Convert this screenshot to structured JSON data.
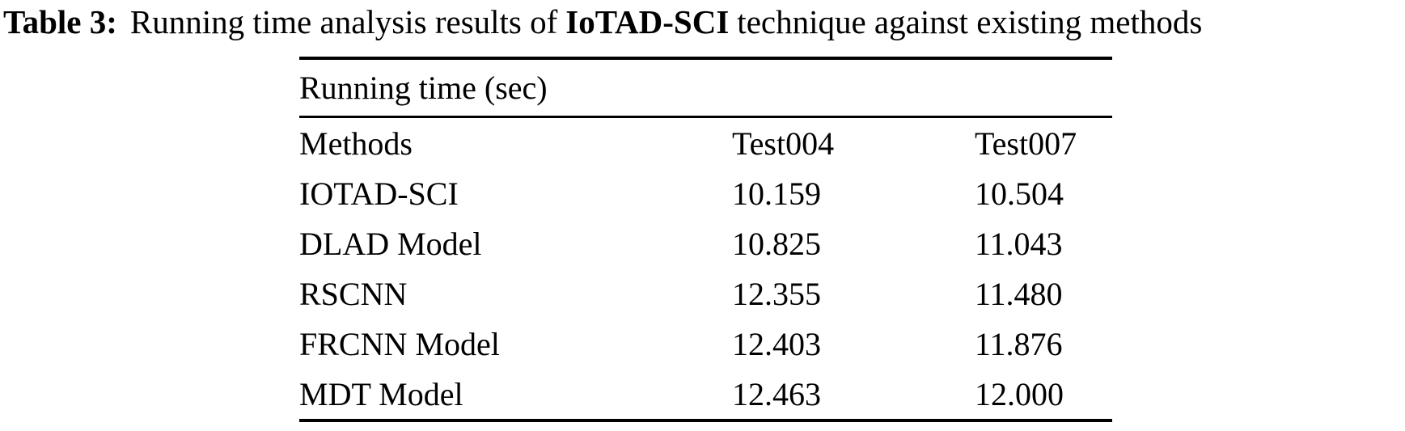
{
  "caption": {
    "label": "Table 3:",
    "text_before": "Running time analysis results of",
    "highlight": "IoTAD-SCI",
    "text_after": "technique against existing methods"
  },
  "table": {
    "group_header": "Running time (sec)",
    "columns": {
      "methods": "Methods",
      "test004": "Test004",
      "test007": "Test007"
    },
    "rows": [
      {
        "method": "IOTAD-SCI",
        "test004": "10.159",
        "test007": "10.504"
      },
      {
        "method": "DLAD Model",
        "test004": "10.825",
        "test007": "11.043"
      },
      {
        "method": "RSCNN",
        "test004": "12.355",
        "test007": "11.480"
      },
      {
        "method": "FRCNN Model",
        "test004": "12.403",
        "test007": "11.876"
      },
      {
        "method": "MDT Model",
        "test004": "12.463",
        "test007": "12.000"
      }
    ]
  },
  "colors": {
    "text": "#000000",
    "background": "#ffffff",
    "rule": "#000000"
  }
}
